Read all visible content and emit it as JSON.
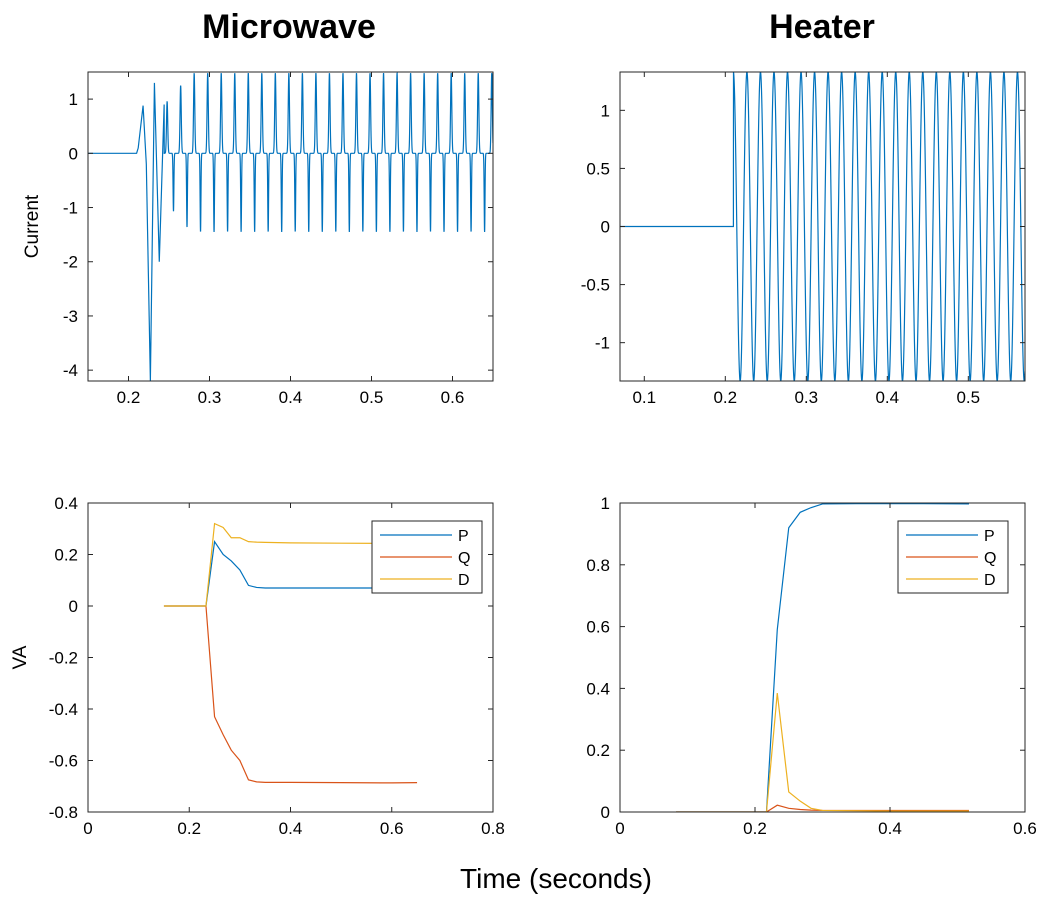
{
  "figure": {
    "xlabel": "Time (seconds)",
    "column_titles": [
      "Microwave",
      "Heater"
    ]
  },
  "chart_data": [
    {
      "id": "microwave-current",
      "type": "line",
      "title": "Microwave",
      "ylabel": "Current",
      "xlim": [
        0.15,
        0.65
      ],
      "ylim": [
        -4.2,
        1.5
      ],
      "xticks": [
        0.2,
        0.3,
        0.4,
        0.5,
        0.6
      ],
      "xtick_labels": [
        "0.2",
        "0.3",
        "0.4",
        "0.5",
        "0.6"
      ],
      "yticks": [
        1,
        0,
        -1,
        -2,
        -3,
        -4
      ],
      "ytick_labels": [
        "1",
        "0",
        "-1",
        "-2",
        "-3",
        "-4"
      ],
      "legend": false,
      "color": "#0072BD",
      "signal": {
        "description": "waveform",
        "onset": 0.21,
        "period_after_onset": 0.0167,
        "steady_peak": 1.48,
        "steady_trough": -1.45,
        "transient_points": [
          [
            0.15,
            0.0
          ],
          [
            0.21,
            0.0
          ],
          [
            0.212,
            0.1
          ],
          [
            0.218,
            0.88
          ],
          [
            0.222,
            -0.2
          ],
          [
            0.227,
            -4.2
          ],
          [
            0.232,
            1.3
          ],
          [
            0.238,
            -2.0
          ],
          [
            0.244,
            0.9
          ]
        ]
      }
    },
    {
      "id": "heater-current",
      "type": "line",
      "title": "Heater",
      "ylabel": "",
      "xlim": [
        0.07,
        0.57
      ],
      "ylim": [
        -1.33,
        1.33
      ],
      "xticks": [
        0.1,
        0.2,
        0.3,
        0.4,
        0.5
      ],
      "xtick_labels": [
        "0.1",
        "0.2",
        "0.3",
        "0.4",
        "0.5"
      ],
      "yticks": [
        1,
        0.5,
        0,
        -0.5,
        -1
      ],
      "ytick_labels": [
        "1",
        "0.5",
        "0",
        "-0.5",
        "-1"
      ],
      "legend": false,
      "color": "#0072BD",
      "signal": {
        "description": "sine",
        "onset": 0.21,
        "period_after_onset": 0.0167,
        "amplitude": 1.33
      }
    },
    {
      "id": "microwave-power",
      "type": "line",
      "title": "",
      "ylabel": "VA",
      "xlim": [
        0,
        0.8
      ],
      "ylim": [
        -0.8,
        0.4
      ],
      "xticks": [
        0,
        0.2,
        0.4,
        0.6,
        0.8
      ],
      "xtick_labels": [
        "0",
        "0.2",
        "0.4",
        "0.6",
        "0.8"
      ],
      "yticks": [
        0.4,
        0.2,
        0,
        -0.2,
        -0.4,
        -0.6,
        -0.8
      ],
      "ytick_labels": [
        "0.4",
        "0.2",
        "0",
        "-0.2",
        "-0.4",
        "-0.6",
        "-0.8"
      ],
      "legend": true,
      "legend_position": "top-right",
      "series": [
        {
          "name": "P",
          "color": "#0072BD",
          "points": [
            [
              0.15,
              0.0
            ],
            [
              0.233,
              0.0
            ],
            [
              0.25,
              0.25
            ],
            [
              0.267,
              0.2
            ],
            [
              0.283,
              0.175
            ],
            [
              0.3,
              0.14
            ],
            [
              0.317,
              0.08
            ],
            [
              0.333,
              0.072
            ],
            [
              0.35,
              0.07
            ],
            [
              0.4,
              0.07
            ],
            [
              0.5,
              0.07
            ],
            [
              0.6,
              0.07
            ],
            [
              0.65,
              0.07
            ]
          ]
        },
        {
          "name": "Q",
          "color": "#D95319",
          "points": [
            [
              0.15,
              0.0
            ],
            [
              0.233,
              0.0
            ],
            [
              0.25,
              -0.43
            ],
            [
              0.267,
              -0.5
            ],
            [
              0.283,
              -0.56
            ],
            [
              0.3,
              -0.6
            ],
            [
              0.317,
              -0.675
            ],
            [
              0.333,
              -0.683
            ],
            [
              0.35,
              -0.685
            ],
            [
              0.4,
              -0.685
            ],
            [
              0.5,
              -0.686
            ],
            [
              0.6,
              -0.687
            ],
            [
              0.65,
              -0.686
            ]
          ]
        },
        {
          "name": "D",
          "color": "#EDB120",
          "points": [
            [
              0.15,
              0.0
            ],
            [
              0.233,
              0.0
            ],
            [
              0.25,
              0.32
            ],
            [
              0.267,
              0.305
            ],
            [
              0.283,
              0.265
            ],
            [
              0.3,
              0.265
            ],
            [
              0.317,
              0.25
            ],
            [
              0.333,
              0.248
            ],
            [
              0.35,
              0.247
            ],
            [
              0.4,
              0.245
            ],
            [
              0.5,
              0.244
            ],
            [
              0.6,
              0.243
            ],
            [
              0.65,
              0.243
            ]
          ]
        }
      ]
    },
    {
      "id": "heater-power",
      "type": "line",
      "title": "",
      "ylabel": "",
      "xlim": [
        0,
        0.6
      ],
      "ylim": [
        0,
        1
      ],
      "xticks": [
        0,
        0.2,
        0.4,
        0.6
      ],
      "xtick_labels": [
        "0",
        "0.2",
        "0.4",
        "0.6"
      ],
      "yticks": [
        1,
        0.8,
        0.6,
        0.4,
        0.2,
        0
      ],
      "ytick_labels": [
        "1",
        "0.8",
        "0.6",
        "0.4",
        "0.2",
        "0"
      ],
      "legend": true,
      "legend_position": "top-right",
      "series": [
        {
          "name": "P",
          "color": "#0072BD",
          "points": [
            [
              0.083,
              0.0
            ],
            [
              0.217,
              0.0
            ],
            [
              0.233,
              0.59
            ],
            [
              0.25,
              0.92
            ],
            [
              0.267,
              0.97
            ],
            [
              0.283,
              0.985
            ],
            [
              0.3,
              0.997
            ],
            [
              0.35,
              0.998
            ],
            [
              0.4,
              0.998
            ],
            [
              0.45,
              0.998
            ],
            [
              0.517,
              0.997
            ]
          ]
        },
        {
          "name": "Q",
          "color": "#D95319",
          "points": [
            [
              0.083,
              0.0
            ],
            [
              0.217,
              0.0
            ],
            [
              0.233,
              0.022
            ],
            [
              0.25,
              0.012
            ],
            [
              0.267,
              0.008
            ],
            [
              0.283,
              0.006
            ],
            [
              0.3,
              0.005
            ],
            [
              0.4,
              0.005
            ],
            [
              0.517,
              0.005
            ]
          ]
        },
        {
          "name": "D",
          "color": "#EDB120",
          "points": [
            [
              0.083,
              0.0
            ],
            [
              0.217,
              0.0
            ],
            [
              0.233,
              0.385
            ],
            [
              0.25,
              0.065
            ],
            [
              0.267,
              0.035
            ],
            [
              0.283,
              0.012
            ],
            [
              0.3,
              0.005
            ],
            [
              0.4,
              0.003
            ],
            [
              0.517,
              0.003
            ]
          ]
        }
      ]
    }
  ]
}
